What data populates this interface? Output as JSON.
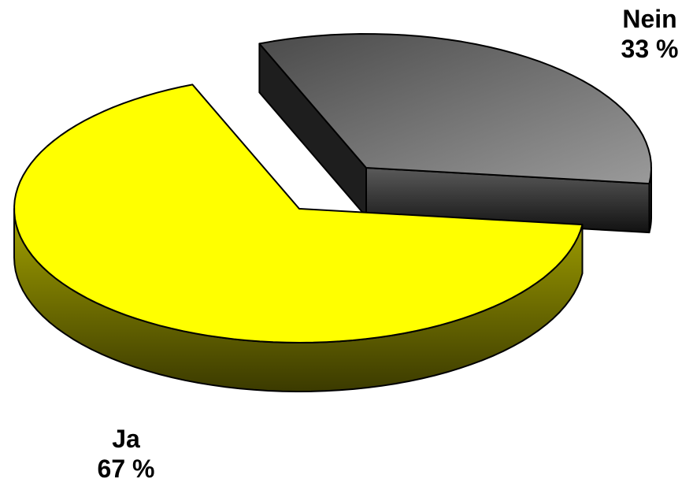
{
  "chart_data": {
    "type": "pie",
    "title": "",
    "categories": [
      "Ja",
      "Nein"
    ],
    "values": [
      67,
      33
    ],
    "value_labels": [
      "67 %",
      "33 %"
    ],
    "colors": [
      "#ffff00",
      "#5a5a5a"
    ],
    "exploded": [
      "Nein"
    ],
    "style": "3d",
    "legend": "none"
  }
}
